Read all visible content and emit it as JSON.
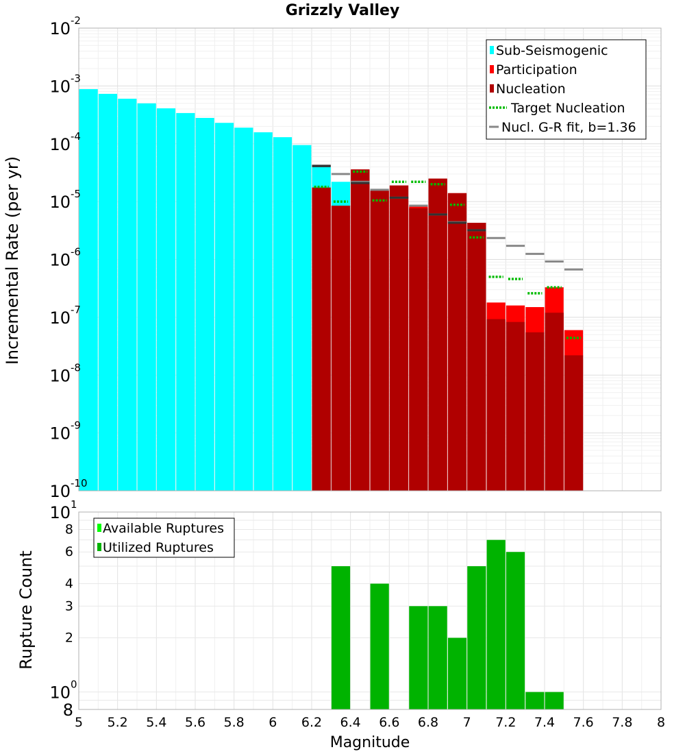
{
  "chart_data": [
    {
      "type": "bar",
      "title": "Grizzly Valley",
      "xlabel": "",
      "ylabel": "Incremental Rate (per yr)",
      "yscale": "log",
      "xlim": [
        5,
        8
      ],
      "ylim": [
        1e-10,
        0.01
      ],
      "ytick_labels": [
        {
          "value": 1e-10,
          "base": "10",
          "exp": "-10"
        },
        {
          "value": 1e-09,
          "base": "10",
          "exp": "-9"
        },
        {
          "value": 1e-08,
          "base": "10",
          "exp": "-8"
        },
        {
          "value": 1e-07,
          "base": "10",
          "exp": "-7"
        },
        {
          "value": 1e-06,
          "base": "10",
          "exp": "-6"
        },
        {
          "value": 1e-05,
          "base": "10",
          "exp": "-5"
        },
        {
          "value": 0.0001,
          "base": "10",
          "exp": "-4"
        },
        {
          "value": 0.001,
          "base": "10",
          "exp": "-3"
        },
        {
          "value": 0.01,
          "base": "10",
          "exp": "-2"
        }
      ],
      "legend_position": "top-right",
      "legend": [
        {
          "label": "Sub-Seismogenic",
          "color": "#00ffff",
          "kind": "bar"
        },
        {
          "label": "Participation",
          "color": "#ff0000",
          "kind": "bar"
        },
        {
          "label": "Nucleation",
          "color": "#b00000",
          "kind": "bar"
        },
        {
          "label": "Target Nucleation",
          "color": "#00bb00",
          "kind": "dotted"
        },
        {
          "label": "Nucl. G-R fit, b=1.36",
          "color": "#888888",
          "kind": "line"
        }
      ],
      "series": [
        {
          "name": "Sub-Seismogenic",
          "color": "#00ffff",
          "x": [
            5.05,
            5.15,
            5.25,
            5.35,
            5.45,
            5.55,
            5.65,
            5.75,
            5.85,
            5.95,
            6.05,
            6.15,
            6.25,
            6.35
          ],
          "values": [
            0.00088,
            0.00073,
            0.0006,
            0.0005,
            0.00041,
            0.00034,
            0.00028,
            0.00023,
            0.00019,
            0.000158,
            0.00013,
            9.5e-05,
            4e-05,
            2.2e-05
          ]
        },
        {
          "name": "Participation",
          "color": "#ff0000",
          "x": [
            6.25,
            6.35,
            6.45,
            6.55,
            6.65,
            6.75,
            6.85,
            6.95,
            7.05,
            7.15,
            7.25,
            7.35,
            7.45,
            7.55
          ],
          "values": [
            1.75e-05,
            8.5e-06,
            3.6e-05,
            1.55e-05,
            1.9e-05,
            8.2e-06,
            2.5e-05,
            1.4e-05,
            4.3e-06,
            1.8e-07,
            1.6e-07,
            1.5e-07,
            3.3e-07,
            6e-08
          ]
        },
        {
          "name": "Nucleation",
          "color": "#b00000",
          "x": [
            6.25,
            6.35,
            6.45,
            6.55,
            6.65,
            6.75,
            6.85,
            6.95,
            7.05,
            7.15,
            7.25,
            7.35,
            7.45,
            7.55
          ],
          "values": [
            1.75e-05,
            8.5e-06,
            3.6e-05,
            1.55e-05,
            1.9e-05,
            7.7e-06,
            2.5e-05,
            1.4e-05,
            4.3e-06,
            9.3e-08,
            8.3e-08,
            5.5e-08,
            1.2e-07,
            2.2e-08
          ]
        },
        {
          "name": "Target Nucleation",
          "color": "#00bb00",
          "x": [
            6.25,
            6.35,
            6.45,
            6.55,
            6.65,
            6.75,
            6.85,
            6.95,
            7.05,
            7.15,
            7.25,
            7.35,
            7.45,
            7.55
          ],
          "values": [
            1.8e-05,
            1e-05,
            3.3e-05,
            1.05e-05,
            2.2e-05,
            2.2e-05,
            2e-05,
            8.8e-06,
            2.4e-06,
            5e-07,
            4.6e-07,
            2.6e-07,
            3.3e-07,
            4.4e-08
          ]
        },
        {
          "name": "Nucl. G-R fit, b=1.36",
          "color": "#888888",
          "x": [
            6.25,
            6.35,
            6.45,
            6.55,
            6.65,
            6.75,
            6.85,
            6.95,
            7.05,
            7.15,
            7.25,
            7.35,
            7.45,
            7.55
          ],
          "values": [
            4.2e-05,
            3e-05,
            2.2e-05,
            1.6e-05,
            1.17e-05,
            8.5e-06,
            6e-06,
            4.4e-06,
            3.2e-06,
            2.35e-06,
            1.72e-06,
            1.25e-06,
            9.2e-07,
            6.7e-07
          ]
        },
        {
          "name": "Nucleation (dark markers)",
          "color": "#333333",
          "x": [
            6.25,
            6.45,
            6.65,
            6.85,
            6.95,
            7.05
          ],
          "values": [
            4.1e-05,
            2.1e-05,
            1.17e-05,
            6e-06,
            4.3e-06,
            3.2e-06
          ]
        }
      ]
    },
    {
      "type": "bar",
      "xlabel": "Magnitude",
      "ylabel": "Rupture Count",
      "yscale": "log",
      "xlim": [
        5,
        8
      ],
      "ylim": [
        0.8,
        10
      ],
      "xtick_labels": [
        "5",
        "5.2",
        "5.4",
        "5.6",
        "5.8",
        "6",
        "6.2",
        "6.4",
        "6.6",
        "6.8",
        "7",
        "7.2",
        "7.4",
        "7.6",
        "7.8",
        "8"
      ],
      "ytick_labels": [
        {
          "value": 10,
          "base": "10",
          "exp": "1"
        },
        {
          "value": 8,
          "label": "8"
        },
        {
          "value": 6,
          "label": "6"
        },
        {
          "value": 4,
          "label": "4"
        },
        {
          "value": 3,
          "label": "3"
        },
        {
          "value": 2,
          "label": "2"
        },
        {
          "value": 1,
          "base": "10",
          "exp": "0"
        },
        {
          "value": 0.8,
          "label": "8"
        }
      ],
      "legend_position": "top-left",
      "legend": [
        {
          "label": "Available Ruptures",
          "color": "#00ff00"
        },
        {
          "label": "Utilized Ruptures",
          "color": "#00b300"
        }
      ],
      "series": [
        {
          "name": "Utilized Ruptures",
          "color": "#00b300",
          "x": [
            6.35,
            6.55,
            6.75,
            6.85,
            6.95,
            7.05,
            7.15,
            7.25,
            7.35,
            7.45
          ],
          "values": [
            5,
            4,
            3,
            3,
            2,
            5,
            7,
            6,
            1,
            1
          ]
        }
      ]
    }
  ]
}
